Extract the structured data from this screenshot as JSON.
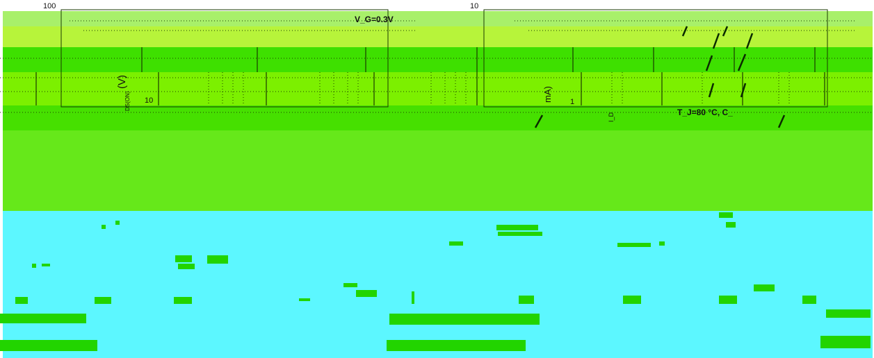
{
  "chart_data": [
    {
      "type": "line",
      "title": "",
      "xlabel": "",
      "ylabel": "(V)",
      "ylabel_subscript": "DS(ON)",
      "y_tick_labels": [
        "100",
        "10"
      ],
      "annotations": [
        "V_G=0.3V"
      ],
      "series": []
    },
    {
      "type": "line",
      "title": "",
      "xlabel": "",
      "ylabel": "mA)",
      "ylabel_subscript": "I_D",
      "y_tick_labels": [
        "10",
        "1"
      ],
      "annotations": [
        "T_J=80 °C, C_"
      ],
      "series": []
    }
  ],
  "colors": {
    "band_top": "#a8f06a",
    "band_mid": "#7cf000",
    "band_low": "#3ee000",
    "band_green": "#66e81a",
    "cyan": "#5cf7ff",
    "pixel_green": "#22d400"
  }
}
